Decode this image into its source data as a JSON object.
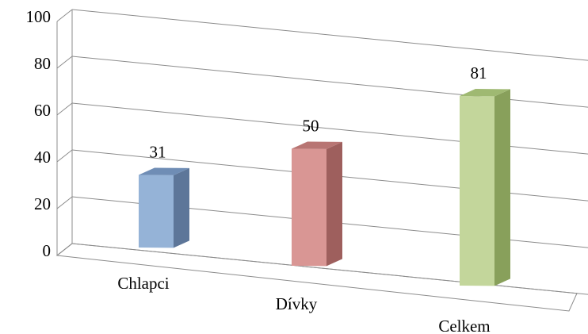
{
  "chart_data": {
    "type": "bar",
    "style": "3d-column",
    "title": "",
    "xlabel": "",
    "ylabel": "",
    "categories": [
      "Chlapci",
      "Dívky",
      "Celkem"
    ],
    "values": [
      31,
      50,
      81
    ],
    "value_labels": [
      "31",
      "50",
      "81"
    ],
    "ylim": [
      0,
      100
    ],
    "yticks": [
      "0",
      "20",
      "40",
      "60",
      "80",
      "100"
    ],
    "grid": true,
    "legend": "none",
    "colors": {
      "Chlapci": {
        "front": "#95b3d7",
        "side": "#5d7699",
        "top": "#6f8db5"
      },
      "Dívky": {
        "front": "#d99694",
        "side": "#9e5f5d",
        "top": "#b87573"
      },
      "Celkem": {
        "front": "#c3d69b",
        "side": "#88a05b",
        "top": "#9fb972"
      }
    }
  }
}
